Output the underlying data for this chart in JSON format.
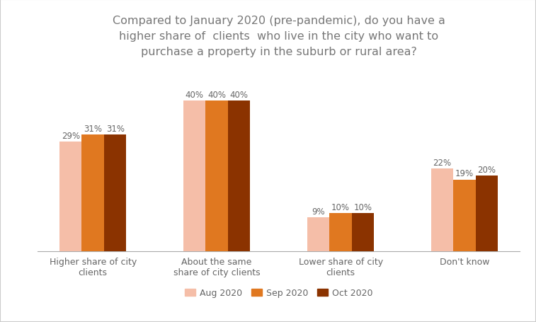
{
  "title": "Compared to January 2020 (pre-pandemic), do you have a\nhigher share of  clients  who live in the city who want to\npurchase a property in the suburb or rural area?",
  "categories": [
    "Higher share of city\nclients",
    "About the same\nshare of city clients",
    "Lower share of city\nclients",
    "Don't know"
  ],
  "series": {
    "Aug 2020": [
      29,
      40,
      9,
      22
    ],
    "Sep 2020": [
      31,
      40,
      10,
      19
    ],
    "Oct 2020": [
      31,
      40,
      10,
      20
    ]
  },
  "colors": {
    "Aug 2020": "#f5bea8",
    "Sep 2020": "#e07820",
    "Oct 2020": "#8b3300"
  },
  "ylim": [
    0,
    48
  ],
  "bar_width": 0.18,
  "label_fontsize": 8.5,
  "title_fontsize": 11.5,
  "legend_fontsize": 9,
  "tick_fontsize": 9,
  "background_color": "#ffffff",
  "border_color": "#cccccc"
}
